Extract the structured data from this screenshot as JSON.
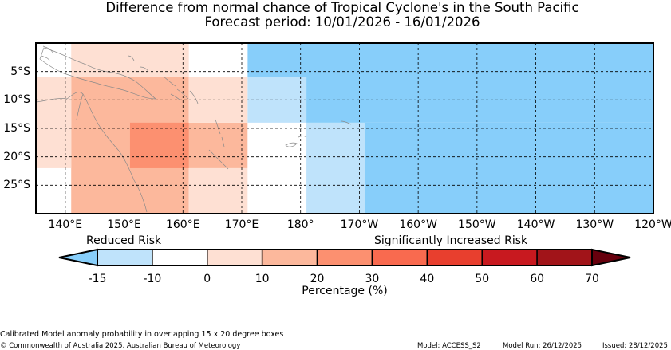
{
  "title_line1": "Difference from normal chance of Tropical Cyclone's in the South Pacific",
  "title_line2": "Forecast period: 10/01/2026 - 16/01/2026",
  "map": {
    "lon_range": [
      135,
      240
    ],
    "lat_range": [
      -30,
      0
    ],
    "lon_ticks": [
      {
        "value": 140,
        "label": "140°E"
      },
      {
        "value": 150,
        "label": "150°E"
      },
      {
        "value": 160,
        "label": "160°E"
      },
      {
        "value": 170,
        "label": "170°E"
      },
      {
        "value": 180,
        "label": "180°"
      },
      {
        "value": 190,
        "label": "170°W"
      },
      {
        "value": 200,
        "label": "160°W"
      },
      {
        "value": 210,
        "label": "150°W"
      },
      {
        "value": 220,
        "label": "140°W"
      },
      {
        "value": 230,
        "label": "130°W"
      },
      {
        "value": 240,
        "label": "120°W"
      }
    ],
    "lat_ticks": [
      {
        "value": -5,
        "label": "5°S"
      },
      {
        "value": -10,
        "label": "10°S"
      },
      {
        "value": -15,
        "label": "15°S"
      },
      {
        "value": -20,
        "label": "20°S"
      },
      {
        "value": -25,
        "label": "25°S"
      }
    ],
    "cells": [
      {
        "lon0": 141,
        "lon1": 161,
        "lat0": 0,
        "lat1": -6,
        "category": "0 to 10"
      },
      {
        "lon0": 141,
        "lon1": 161,
        "lat0": -6,
        "lat1": -30,
        "category": "10 to 20"
      },
      {
        "lon0": 135,
        "lon1": 141,
        "lat0": -6,
        "lat1": -22,
        "category": "0 to 10"
      },
      {
        "lon0": 151,
        "lon1": 171,
        "lat0": -14,
        "lat1": -22,
        "category": "10 to 20"
      },
      {
        "lon0": 151,
        "lon1": 161,
        "lat0": -14,
        "lat1": -22,
        "category": "20 to 30"
      },
      {
        "lon0": 161,
        "lon1": 171,
        "lat0": -6,
        "lat1": -14,
        "category": "0 to 10"
      },
      {
        "lon0": 161,
        "lon1": 171,
        "lat0": -22,
        "lat1": -30,
        "category": "0 to 10"
      },
      {
        "lon0": 171,
        "lon1": 240,
        "lat0": 0,
        "lat1": -30,
        "category": "-10 to 0"
      },
      {
        "lon0": 171,
        "lon1": 181,
        "lat0": -6,
        "lat1": -14,
        "category": "-15 to -10"
      },
      {
        "lon0": 181,
        "lon1": 191,
        "lat0": -14,
        "lat1": -30,
        "category": "-15 to -10"
      },
      {
        "lon0": 171,
        "lon1": 240,
        "lat0": 0,
        "lat1": -6,
        "category": "below -15"
      },
      {
        "lon0": 181,
        "lon1": 240,
        "lat0": -6,
        "lat1": -14,
        "category": "below -15"
      },
      {
        "lon0": 191,
        "lon1": 240,
        "lat0": -14,
        "lat1": -30,
        "category": "below -15"
      }
    ]
  },
  "colorbar": {
    "reduced_label": "Reduced Risk",
    "increased_label": "Significantly Increased Risk",
    "title": "Percentage (%)",
    "tick_labels": [
      "-15",
      "-10",
      "0",
      "10",
      "20",
      "30",
      "40",
      "50",
      "60",
      "70"
    ],
    "segments": [
      {
        "range": "below -15",
        "color": "#87cefa"
      },
      {
        "range": "-15 to -10",
        "color": "#bfe3fb"
      },
      {
        "range": "-10 to 0",
        "color": "#ffffff"
      },
      {
        "range": "0 to 10",
        "color": "#fee0d3"
      },
      {
        "range": "10 to 20",
        "color": "#fcb89c"
      },
      {
        "range": "20 to 30",
        "color": "#fc9070"
      },
      {
        "range": "30 to 40",
        "color": "#f96a4f"
      },
      {
        "range": "40 to 50",
        "color": "#e83f2e"
      },
      {
        "range": "50 to 60",
        "color": "#c8191f"
      },
      {
        "range": "60 to 70",
        "color": "#a11419"
      },
      {
        "range": "above 70",
        "color": "#67000d"
      }
    ]
  },
  "footer": {
    "note": "Calibrated Model anomaly probability in overlapping 15 x 20 degree boxes",
    "copyright": "© Commonwealth of Australia 2025, Australian Bureau of Meteorology",
    "model": "Model: ACCESS_S2",
    "model_run": "Model Run: 26/12/2025",
    "issued": "Issued: 28/12/2025"
  }
}
